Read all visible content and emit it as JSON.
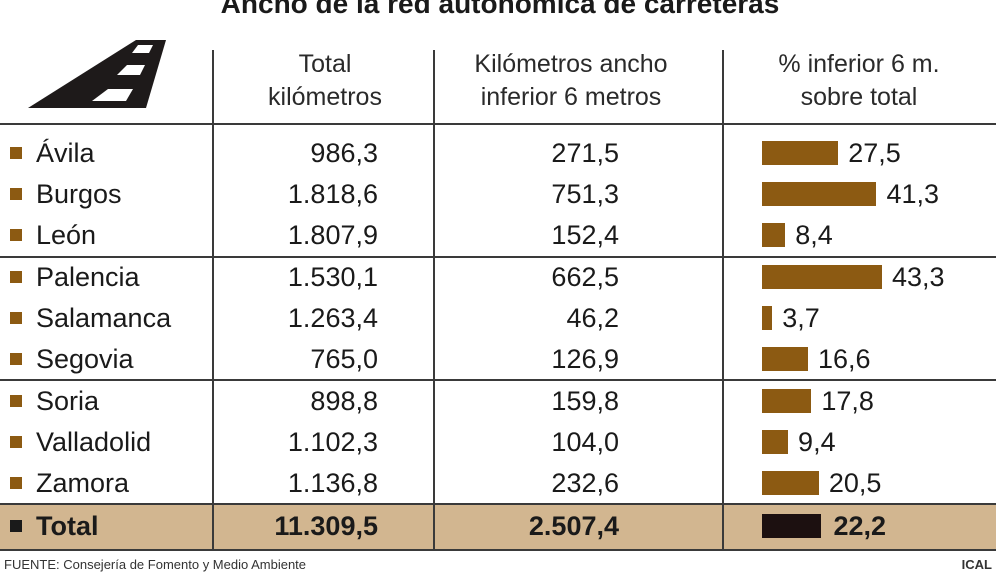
{
  "title": "Ancho de la red autonómica de carreteras",
  "icon": "road-icon",
  "headers": {
    "total": [
      "Total",
      "kilómetros"
    ],
    "km": [
      "Kilómetros ancho",
      "inferior 6 metros"
    ],
    "pct": [
      "% inferior 6 m.",
      "sobre total"
    ]
  },
  "colors": {
    "bar": "#8c5a12",
    "total_bar": "#1c1010",
    "total_band": "#d2b690"
  },
  "chart_data": {
    "type": "table",
    "title": "Ancho de la red autonómica de carreteras",
    "columns": [
      "Total kilómetros",
      "Kilómetros ancho inferior 6 metros",
      "% inferior 6 m. sobre total"
    ],
    "rows": [
      {
        "name": "Ávila",
        "total": "986,3",
        "km": "271,5",
        "pct": "27,5",
        "pct_value": 27.5
      },
      {
        "name": "Burgos",
        "total": "1.818,6",
        "km": "751,3",
        "pct": "41,3",
        "pct_value": 41.3
      },
      {
        "name": "León",
        "total": "1.807,9",
        "km": "152,4",
        "pct": "8,4",
        "pct_value": 8.4
      },
      {
        "name": "Palencia",
        "total": "1.530,1",
        "km": "662,5",
        "pct": "43,3",
        "pct_value": 43.3
      },
      {
        "name": "Salamanca",
        "total": "1.263,4",
        "km": "46,2",
        "pct": "3,7",
        "pct_value": 3.7
      },
      {
        "name": "Segovia",
        "total": "765,0",
        "km": "126,9",
        "pct": "16,6",
        "pct_value": 16.6
      },
      {
        "name": "Soria",
        "total": "898,8",
        "km": "159,8",
        "pct": "17,8",
        "pct_value": 17.8
      },
      {
        "name": "Valladolid",
        "total": "1.102,3",
        "km": "104,0",
        "pct": "9,4",
        "pct_value": 9.4
      },
      {
        "name": "Zamora",
        "total": "1.136,8",
        "km": "232,6",
        "pct": "20,5",
        "pct_value": 20.5
      }
    ],
    "total": {
      "name": "Total",
      "total": "11.309,5",
      "km": "2.507,4",
      "pct": "22,2",
      "pct_value": 22.2
    },
    "pct_scale_max": 43.3
  },
  "source": "FUENTE: Consejería de Fomento y Medio Ambiente",
  "credit": "ICAL"
}
